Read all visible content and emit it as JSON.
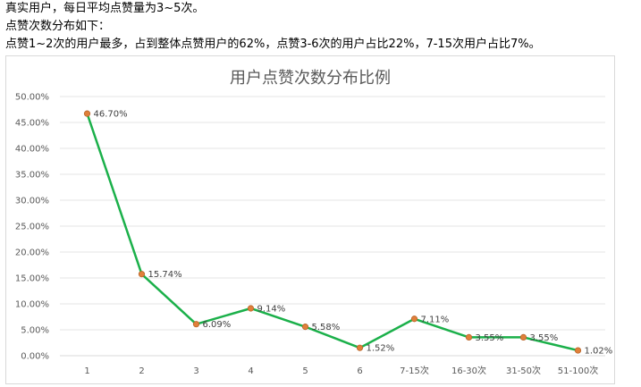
{
  "intro": {
    "line1": "真实用户，每日平均点赞量为3~5次。",
    "line2": "点赞次数分布如下：",
    "line3": "点赞1~2次的用户最多，占到整体点赞用户的62%，点赞3-6次的用户占比22%，7-15次用户占比7%。"
  },
  "colors": {
    "line": "#1bb04a",
    "marker": "#e0803a",
    "grid": "#e6e6e6",
    "axis": "#d9d9d9"
  },
  "chart_data": {
    "type": "line",
    "title": "用户点赞次数分布比例",
    "xlabel": "",
    "ylabel": "",
    "categories": [
      "1",
      "2",
      "3",
      "4",
      "5",
      "6",
      "7-15次",
      "16-30次",
      "31-50次",
      "51-100次"
    ],
    "values": [
      46.7,
      15.74,
      6.09,
      9.14,
      5.58,
      1.52,
      7.11,
      3.55,
      3.55,
      1.02
    ],
    "value_labels": [
      "46.70%",
      "15.74%",
      "6.09%",
      "9.14%",
      "5.58%",
      "1.52%",
      "7.11%",
      "3.55%",
      "3.55%",
      "1.02%"
    ],
    "ylim": [
      0,
      50
    ],
    "yticks": [
      0,
      5,
      10,
      15,
      20,
      25,
      30,
      35,
      40,
      45,
      50
    ],
    "ytick_labels": [
      "0.00%",
      "5.00%",
      "10.00%",
      "15.00%",
      "20.00%",
      "25.00%",
      "30.00%",
      "35.00%",
      "40.00%",
      "45.00%",
      "50.00%"
    ],
    "grid": true,
    "legend": "none"
  }
}
